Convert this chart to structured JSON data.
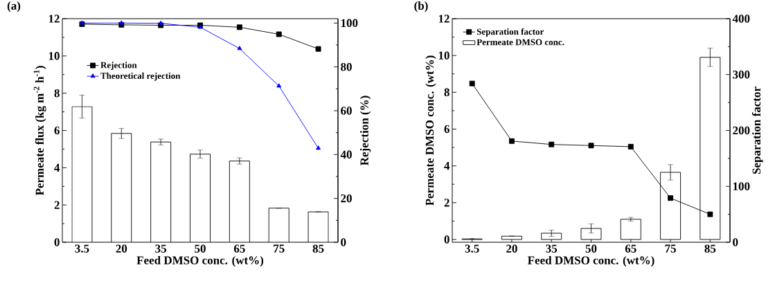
{
  "chart_data": [
    {
      "type": "bar",
      "title": "(a)",
      "xlabel": "Feed DMSO conc. (wt%)",
      "ylabel": "Permeate flux (kg m$^{-2}$ h$^{-1}$)",
      "y2label": "Rejection (%)",
      "categories": [
        "3.5",
        "20",
        "35",
        "50",
        "65",
        "75",
        "85"
      ],
      "ylim": [
        0,
        12
      ],
      "yticks": [
        0,
        2,
        4,
        6,
        8,
        10,
        12
      ],
      "y2lim": [
        0,
        102
      ],
      "y2ticks": [
        0,
        20,
        40,
        60,
        80,
        100
      ],
      "legend": "left",
      "series": [
        {
          "color": "#000000",
          "values": [
            7.28,
            5.84,
            5.38,
            4.73,
            4.36,
            1.83,
            1.63
          ],
          "errors": [
            0.62,
            0.27,
            0.16,
            0.22,
            0.17,
            null,
            null
          ]
        },
        {
          "name": "Rejection",
          "type": "line",
          "axis": "y2",
          "color": "#000000",
          "marker": "square",
          "values": [
            99.5,
            99.2,
            99.0,
            99.0,
            98.1,
            94.9,
            88.2
          ]
        },
        {
          "name": "Theoretical rejection",
          "type": "line",
          "axis": "y2",
          "color": "#0000ff",
          "marker": "triangle",
          "values": [
            100,
            100,
            99.9,
            98.1,
            88.4,
            71.3,
            42.9
          ]
        }
      ]
    },
    {
      "type": "bar",
      "title": "(b)",
      "xlabel": "Feed DMSO conc. (wt%)",
      "ylabel": "Permeate DMSO conc. (wt%)",
      "y2label": "Separation factor",
      "categories": [
        "3.5",
        "20",
        "35",
        "50",
        "65",
        "75",
        "85"
      ],
      "ylim": [
        -0.15,
        12
      ],
      "yticks": [
        0,
        2,
        4,
        6,
        8,
        10,
        12
      ],
      "y2lim": [
        0,
        400
      ],
      "y2ticks": [
        0,
        100,
        200,
        300,
        400
      ],
      "legend": "top left",
      "series": [
        {
          "name": "Permeate DMSO conc.",
          "color": "#000000",
          "values": [
            0.03,
            0.18,
            0.34,
            0.6,
            1.1,
            3.65,
            9.9
          ],
          "errors": [
            null,
            null,
            0.17,
            0.25,
            0.1,
            0.42,
            0.5
          ]
        },
        {
          "name": "Separation factor",
          "type": "line",
          "axis": "y2",
          "color": "#000000",
          "marker": "square",
          "values": [
            284,
            181,
            175,
            173,
            171,
            79,
            50
          ]
        }
      ]
    }
  ]
}
